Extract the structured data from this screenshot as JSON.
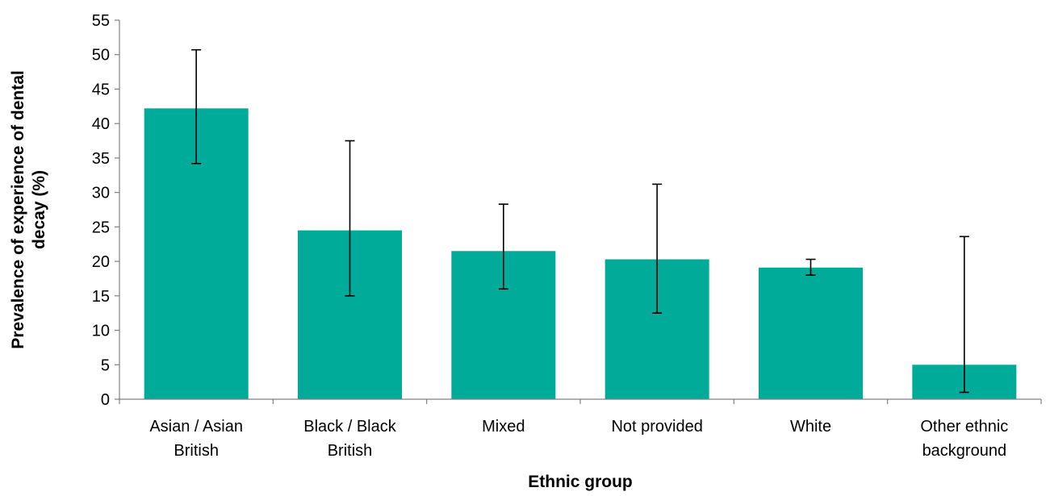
{
  "chart_data": {
    "type": "bar",
    "title": "",
    "xlabel": "Ethnic group",
    "ylabel_lines": [
      "Prevalence of experience of dental",
      "decay (%)"
    ],
    "categories": [
      [
        "Asian / Asian",
        "British"
      ],
      [
        "Black / Black",
        "British"
      ],
      [
        "Mixed"
      ],
      [
        "Not provided"
      ],
      [
        "White"
      ],
      [
        "Other ethnic",
        "background"
      ]
    ],
    "values": [
      42.2,
      24.5,
      21.5,
      20.3,
      19.1,
      5.0
    ],
    "error_low": [
      34.2,
      15.0,
      16.0,
      12.5,
      18.0,
      1.0
    ],
    "error_high": [
      50.7,
      37.5,
      28.3,
      31.2,
      20.3,
      23.6
    ],
    "ylim": [
      0,
      55
    ],
    "yticks": [
      "0",
      "5",
      "10",
      "15",
      "20",
      "25",
      "30",
      "35",
      "40",
      "45",
      "50",
      "55"
    ],
    "bar_color": "#00ab9a",
    "grid": false,
    "legend": "none"
  }
}
